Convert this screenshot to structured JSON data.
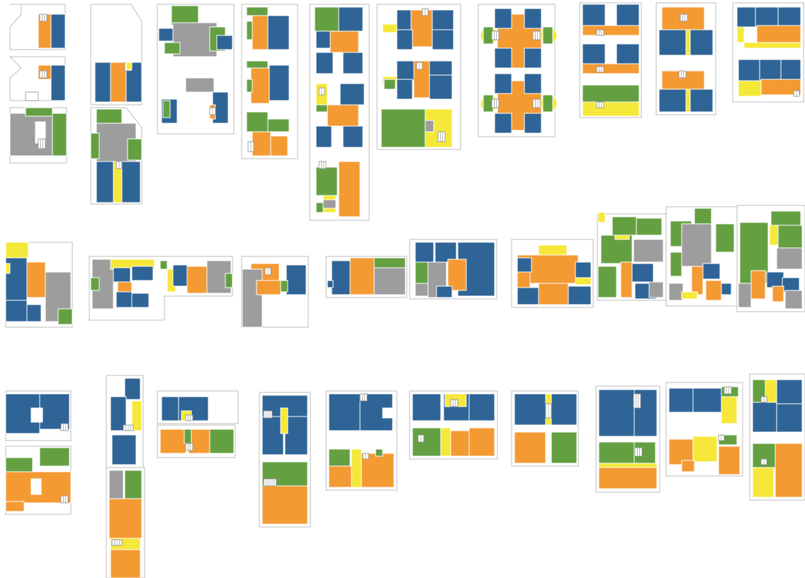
{
  "colors": {
    "blue": "#2f6496",
    "orange": "#f49a33",
    "green": "#64a042",
    "gray": "#9d9d9d",
    "yellow": "#f5e83a",
    "white": "#ffffff",
    "frame": "#bdbdbd"
  },
  "legend_roles": {
    "blue": "bedroom-block",
    "orange": "living-block",
    "green": "service-block",
    "gray": "circulation-block",
    "yellow": "corridor-block"
  }
}
